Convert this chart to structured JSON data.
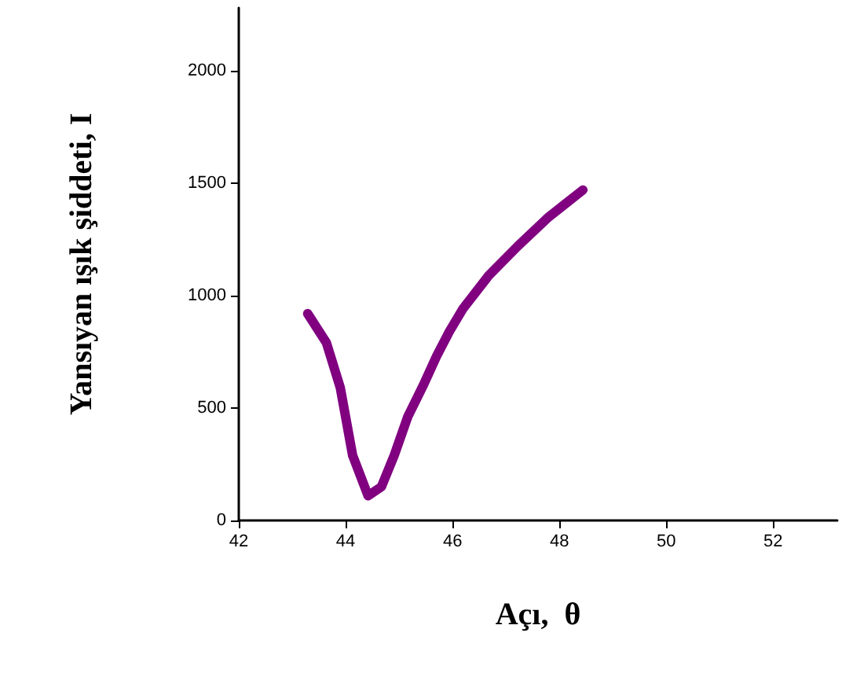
{
  "chart_data": {
    "type": "line",
    "xlabel": "Açı,  θ",
    "ylabel": "Yansıyan ışık şiddeti, I",
    "x": [
      43.29,
      43.64,
      43.9,
      44.13,
      44.42,
      44.67,
      44.91,
      45.16,
      45.45,
      45.7,
      45.94,
      46.19,
      46.68,
      47.22,
      47.8,
      48.44
    ],
    "series": [
      {
        "color": "#800080",
        "values": [
          920,
          790,
          590,
          290,
          110,
          150,
          290,
          460,
          600,
          730,
          840,
          940,
          1090,
          1220,
          1350,
          1470
        ]
      }
    ],
    "xlim": [
      42,
      53.2
    ],
    "xticks": [
      42,
      44,
      46,
      48,
      50,
      52
    ],
    "ylim": [
      0,
      2280
    ],
    "yticks": [
      0,
      500,
      1000,
      1500,
      2000
    ],
    "marker": "none",
    "line_style": "solid"
  }
}
